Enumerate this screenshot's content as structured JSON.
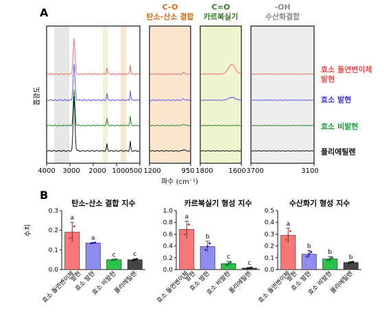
{
  "panel_a": {
    "label": "A",
    "ylabel": "흡광도",
    "xlabel": "파수 (cm⁻¹)",
    "legend": [
      {
        "text": "효소 돌연변이체",
        "color": "#ef4b4b"
      },
      {
        "text": "발현",
        "color": "#ef4b4b"
      },
      {
        "text": "효소 발현",
        "color": "#3b36e0"
      },
      {
        "text": "효소 비발현",
        "color": "#1aa03c"
      },
      {
        "text": "폴리에틸렌",
        "color": "#111111"
      }
    ],
    "zoom_headers": [
      {
        "line1": "C–O",
        "line2": "탄소-산소 결합",
        "color": "#d46a12"
      },
      {
        "line1": "C=O",
        "line2": "카르복실기",
        "color": "#2f7a1f"
      },
      {
        "line1": "-OH",
        "line2": "수산화결합",
        "color": "#8a8a8a"
      }
    ],
    "colors": {
      "c_o": "#fde6cf",
      "c_eq_o": "#f0f5cf",
      "oh": "#eeeeee",
      "shade_main": "#e9e9e9"
    }
  },
  "panel_b": {
    "label": "B",
    "ylabel": "수치",
    "categories": [
      "효소 돌연변이체 발현",
      "효소 발현",
      "효소 비발현",
      "폴리에틸렌"
    ],
    "colors": [
      "#f97777",
      "#8f8cf0",
      "#2bc24a",
      "#444444"
    ]
  },
  "chart_data": [
    {
      "type": "line",
      "title": "",
      "xlabel": "파수 (cm⁻¹)",
      "ylabel": "흡광도",
      "x_ticks": [
        "4000",
        "3000",
        "2000",
        "1000",
        "500"
      ],
      "zoom_ranges": [
        {
          "name": "C–O 탄소-산소 결합",
          "x_ticks": [
            "1200",
            "950"
          ]
        },
        {
          "name": "C=O 카르복실기",
          "x_ticks": [
            "1800",
            "1600"
          ]
        },
        {
          "name": "-OH 수산화결합",
          "x_ticks": [
            "3700",
            "3100"
          ]
        }
      ],
      "series": [
        {
          "name": "효소 돌연변이체 발현",
          "color": "#f06a6a"
        },
        {
          "name": "효소 발현",
          "color": "#5a55ee"
        },
        {
          "name": "효소 비발현",
          "color": "#1f8a2e"
        },
        {
          "name": "폴리에틸렌",
          "color": "#111111"
        }
      ]
    },
    {
      "type": "bar",
      "title": "탄소-산소 결합 지수",
      "ylabel": "수치",
      "categories": [
        "효소 돌연변이체 발현",
        "효소 발현",
        "효소 비발현",
        "폴리에틸렌"
      ],
      "values": [
        0.19,
        0.135,
        0.05,
        0.05
      ],
      "errors": [
        0.05,
        0.003,
        0.003,
        0.005
      ],
      "letters": [
        "a",
        "a",
        "c",
        "c"
      ],
      "ylim": [
        0,
        0.3
      ],
      "yticks": [
        "0.0",
        "0.1",
        "0.2",
        "0.3"
      ]
    },
    {
      "type": "bar",
      "title": "카르복실기 형성 지수",
      "categories": [
        "효소 돌연변이체 발현",
        "효소 발현",
        "효소 비발현",
        "폴리에틸렌"
      ],
      "values": [
        0.68,
        0.39,
        0.1,
        0.025
      ],
      "errors": [
        0.14,
        0.09,
        0.04,
        0.01
      ],
      "letters": [
        "a",
        "b",
        "c",
        "c"
      ],
      "ylim": [
        0,
        1.0
      ],
      "yticks": [
        "0.0",
        "0.2",
        "0.4",
        "0.6",
        "0.8",
        "1.0"
      ]
    },
    {
      "type": "bar",
      "title": "수산화기 형성 지수",
      "categories": [
        "효소 돌연변이체 발현",
        "효소 발현",
        "효소 비발현",
        "폴리에틸렌"
      ],
      "values": [
        0.29,
        0.13,
        0.09,
        0.06
      ],
      "errors": [
        0.06,
        0.03,
        0.02,
        0.008
      ],
      "letters": [
        "a",
        "b",
        "b",
        "b"
      ],
      "ylim": [
        0,
        0.5
      ],
      "yticks": [
        "0.0",
        "0.1",
        "0.2",
        "0.3",
        "0.4",
        "0.5"
      ]
    }
  ]
}
